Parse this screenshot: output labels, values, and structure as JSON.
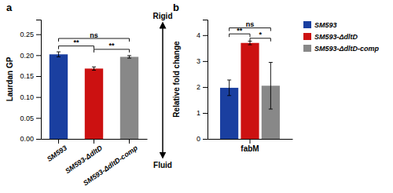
{
  "chart_data": [
    {
      "type": "bar",
      "panel_label": "a",
      "categories": [
        "SM593",
        "SM593-ΔdltD",
        "SM593-ΔdltD-comp"
      ],
      "values": [
        0.202,
        0.168,
        0.196
      ],
      "errors": [
        0.006,
        0.004,
        0.003
      ],
      "colors": [
        "#1a3fa0",
        "#cc1111",
        "#888888"
      ],
      "ylabel": "Laurdan GP",
      "ylim": [
        0,
        0.285
      ],
      "yticks": [
        {
          "value": 0,
          "label": "0.00"
        },
        0.05,
        {
          "value": 0.1,
          "label": "0.10"
        },
        0.15,
        {
          "value": 0.2,
          "label": "0.20"
        },
        0.25
      ],
      "annotations": [
        {
          "text": "**",
          "y": 0.222,
          "between": [
            0,
            1
          ]
        },
        {
          "text": "**",
          "y": 0.214,
          "between": [
            1,
            2
          ]
        },
        {
          "text": "ns",
          "y": 0.24,
          "between": [
            0,
            2
          ]
        }
      ],
      "arrow_labels": [
        "Rigid",
        "Fluid"
      ]
    },
    {
      "type": "bar",
      "panel_label": "b",
      "categories": [
        "fabM"
      ],
      "series": [
        {
          "name": "SM593",
          "color": "#1a3fa0",
          "values": [
            1.97
          ],
          "errors": [
            0.3
          ]
        },
        {
          "name": "SM593-ΔdltD",
          "color": "#cc1111",
          "values": [
            3.7
          ],
          "errors": [
            0.07
          ]
        },
        {
          "name": "SM593-ΔdltD-comp",
          "color": "#888888",
          "values": [
            2.05
          ],
          "errors": [
            0.9
          ]
        }
      ],
      "ylabel": "Relative fold change",
      "ylim": [
        0,
        4.6
      ],
      "yticks": [
        0,
        1,
        2,
        3,
        4
      ],
      "annotations": [
        {
          "text": "**",
          "y": 4.05,
          "between": [
            0,
            1
          ]
        },
        {
          "text": "*",
          "y": 3.88,
          "between": [
            1,
            2
          ]
        },
        {
          "text": "ns",
          "y": 4.28,
          "between": [
            0,
            2
          ]
        }
      ],
      "legend": "right"
    }
  ]
}
